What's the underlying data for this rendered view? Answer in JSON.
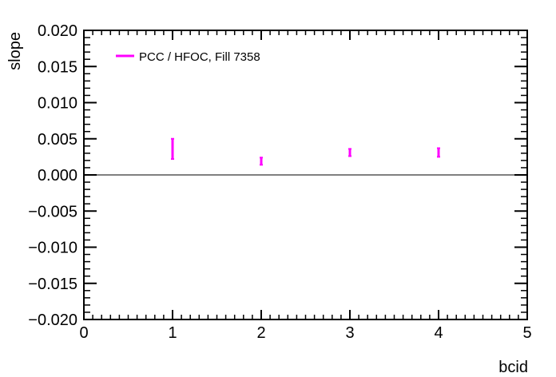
{
  "chart_data": {
    "type": "scatter",
    "title": "",
    "xlabel": "bcid",
    "ylabel": "slope",
    "xlim": [
      0,
      5
    ],
    "ylim": [
      -0.02,
      0.02
    ],
    "x_ticks": [
      "0",
      "1",
      "2",
      "3",
      "4",
      "5"
    ],
    "y_ticks": [
      "0.020",
      "0.015",
      "0.010",
      "0.005",
      "0.000",
      "−0.005",
      "−0.010",
      "−0.015",
      "−0.020"
    ],
    "reference_line_y": 0,
    "grid": false,
    "legend_position": "top-left",
    "series": [
      {
        "name": "PCC / HFOC,  Fill 7358",
        "color": "#ff00ff",
        "points": [
          {
            "x": 1,
            "y": 0.0036,
            "err": 0.0014
          },
          {
            "x": 2,
            "y": 0.0019,
            "err": 0.0005
          },
          {
            "x": 3,
            "y": 0.0031,
            "err": 0.0005
          },
          {
            "x": 4,
            "y": 0.0031,
            "err": 0.0006
          }
        ]
      }
    ]
  }
}
